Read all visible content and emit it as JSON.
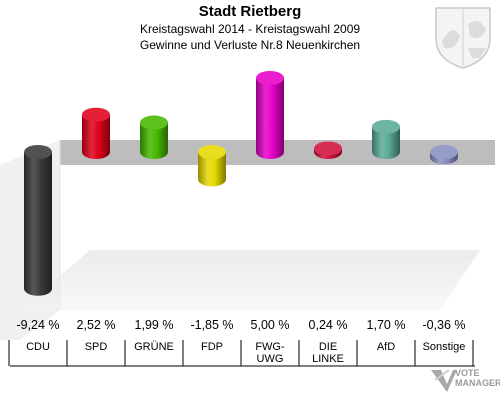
{
  "header": {
    "title": "Stadt Rietberg",
    "subtitle": "Kreistagswahl 2014 - Kreistagswahl 2009",
    "subtitle2": "Gewinne und Verluste Nr.8 Neuenkirchen"
  },
  "chart_data": {
    "type": "bar",
    "title": "Stadt Rietberg",
    "subtitle": "Kreistagswahl 2014 - Kreistagswahl 2009 / Gewinne und Verluste Nr.8 Neuenkirchen",
    "categories": [
      "CDU",
      "SPD",
      "GRÜNE",
      "FDP",
      "FWG-UWG",
      "DIE LINKE",
      "AfD",
      "Sonstige"
    ],
    "category_lines": [
      [
        "CDU"
      ],
      [
        "SPD"
      ],
      [
        "GRÜNE"
      ],
      [
        "FDP"
      ],
      [
        "FWG-",
        "UWG"
      ],
      [
        "DIE",
        "LINKE"
      ],
      [
        "AfD"
      ],
      [
        "Sonstige"
      ]
    ],
    "values": [
      -9.24,
      2.52,
      1.99,
      -1.85,
      5.0,
      0.24,
      1.7,
      -0.36
    ],
    "value_labels": [
      "-9,24 %",
      "2,52 %",
      "1,99 %",
      "-1,85 %",
      "5,00 %",
      "0,24 %",
      "1,70 %",
      "-0,36 %"
    ],
    "colors": [
      "#3a3a3a",
      "#e0001b",
      "#46b800",
      "#e6d800",
      "#e600c8",
      "#d0103a",
      "#5aaa96",
      "#8890c0"
    ],
    "xlabel": "",
    "ylabel": "",
    "ylim": [
      -9.5,
      5.5
    ]
  },
  "brand": {
    "logo_text_1": "VOTE",
    "logo_text_2": "MANAGER"
  }
}
